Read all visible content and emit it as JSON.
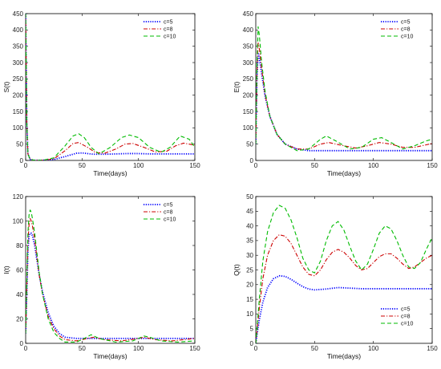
{
  "chart_data": [
    {
      "type": "line",
      "xlabel": "Time(days)",
      "ylabel": "S(t)",
      "xlim": [
        0,
        150
      ],
      "ylim": [
        0,
        450
      ],
      "xticks": [
        0,
        50,
        100,
        150
      ],
      "yticks": [
        0,
        50,
        100,
        150,
        200,
        250,
        300,
        350,
        400,
        450
      ],
      "legend": "top-right",
      "series": [
        {
          "name": "c=5",
          "color": "#0000ff",
          "dash": "dotted",
          "x": [
            0,
            1,
            2,
            4,
            8,
            15,
            25,
            35,
            45,
            50,
            55,
            60,
            70,
            80,
            90,
            100,
            110,
            120,
            130,
            140,
            150
          ],
          "y": [
            450,
            120,
            20,
            3,
            0.5,
            0.5,
            3,
            12,
            22,
            23,
            21,
            19,
            19,
            20,
            21,
            21,
            20,
            20,
            20,
            20,
            20
          ]
        },
        {
          "name": "c=8",
          "color": "#cc0000",
          "dash": "dashdot",
          "x": [
            0,
            1,
            2,
            4,
            8,
            15,
            25,
            35,
            42,
            47,
            55,
            62,
            70,
            80,
            88,
            95,
            105,
            115,
            125,
            133,
            140,
            150
          ],
          "y": [
            450,
            120,
            20,
            3,
            0.5,
            0.5,
            5,
            30,
            52,
            55,
            40,
            24,
            22,
            35,
            50,
            52,
            40,
            26,
            28,
            45,
            53,
            47
          ]
        },
        {
          "name": "c=10",
          "color": "#00bb00",
          "dash": "dashed",
          "x": [
            0,
            1,
            2,
            4,
            8,
            15,
            25,
            35,
            42,
            47,
            52,
            58,
            65,
            75,
            85,
            92,
            100,
            110,
            120,
            128,
            137,
            145,
            150
          ],
          "y": [
            450,
            120,
            20,
            3,
            0.5,
            0.5,
            8,
            45,
            75,
            82,
            70,
            40,
            20,
            40,
            70,
            78,
            70,
            40,
            25,
            40,
            75,
            65,
            40
          ]
        }
      ]
    },
    {
      "type": "line",
      "xlabel": "Time(days)",
      "ylabel": "E(t)",
      "xlim": [
        0,
        150
      ],
      "ylim": [
        0,
        450
      ],
      "xticks": [
        0,
        50,
        100,
        150
      ],
      "yticks": [
        0,
        50,
        100,
        150,
        200,
        250,
        300,
        350,
        400,
        450
      ],
      "legend": "top-right",
      "series": [
        {
          "name": "c=5",
          "color": "#0000ff",
          "dash": "dotted",
          "x": [
            0,
            1,
            2,
            3,
            5,
            8,
            12,
            18,
            25,
            35,
            45,
            60,
            80,
            100,
            120,
            150
          ],
          "y": [
            50,
            250,
            330,
            315,
            265,
            195,
            135,
            80,
            50,
            35,
            30,
            30,
            30,
            30,
            30,
            30
          ]
        },
        {
          "name": "c=8",
          "color": "#cc0000",
          "dash": "dashdot",
          "x": [
            0,
            1,
            2,
            3,
            5,
            8,
            12,
            18,
            25,
            35,
            45,
            55,
            62,
            72,
            85,
            95,
            105,
            115,
            125,
            135,
            145,
            150
          ],
          "y": [
            50,
            270,
            360,
            345,
            280,
            200,
            135,
            80,
            50,
            35,
            35,
            50,
            55,
            47,
            38,
            45,
            55,
            50,
            40,
            40,
            48,
            52
          ]
        },
        {
          "name": "c=10",
          "color": "#00bb00",
          "dash": "dashed",
          "x": [
            0,
            1,
            2,
            3,
            5,
            8,
            12,
            18,
            25,
            35,
            45,
            55,
            60,
            68,
            80,
            90,
            100,
            107,
            115,
            125,
            135,
            145,
            150
          ],
          "y": [
            50,
            290,
            410,
            385,
            300,
            210,
            135,
            80,
            50,
            30,
            35,
            65,
            75,
            60,
            35,
            40,
            65,
            70,
            55,
            35,
            45,
            60,
            65
          ]
        }
      ]
    },
    {
      "type": "line",
      "xlabel": "Time(days)",
      "ylabel": "I(t)",
      "xlim": [
        0,
        150
      ],
      "ylim": [
        0,
        120
      ],
      "xticks": [
        0,
        50,
        100,
        150
      ],
      "yticks": [
        0,
        20,
        40,
        60,
        80,
        100,
        120
      ],
      "legend": "top-right",
      "series": [
        {
          "name": "c=5",
          "color": "#0000ff",
          "dash": "dotted",
          "x": [
            0,
            1,
            2,
            3,
            4,
            5,
            6,
            8,
            10,
            12,
            15,
            20,
            25,
            30,
            35,
            45,
            60,
            80,
            100,
            120,
            150
          ],
          "y": [
            8,
            40,
            75,
            88,
            90,
            90,
            88,
            80,
            68,
            56,
            42,
            25,
            14,
            8,
            5,
            4,
            4,
            4,
            4,
            4,
            4
          ]
        },
        {
          "name": "c=8",
          "color": "#cc0000",
          "dash": "dashdot",
          "x": [
            0,
            1,
            2,
            3,
            4,
            5,
            6,
            8,
            10,
            12,
            15,
            20,
            25,
            30,
            35,
            45,
            55,
            60,
            70,
            85,
            100,
            105,
            115,
            130,
            150
          ],
          "y": [
            8,
            45,
            82,
            97,
            102,
            100,
            96,
            85,
            70,
            56,
            40,
            22,
            12,
            6,
            3,
            2,
            4,
            5,
            3,
            2,
            4,
            5,
            3,
            2,
            4
          ]
        },
        {
          "name": "c=10",
          "color": "#00bb00",
          "dash": "dashed",
          "x": [
            0,
            1,
            2,
            3,
            4,
            5,
            6,
            8,
            10,
            12,
            15,
            20,
            25,
            30,
            35,
            45,
            52,
            58,
            65,
            80,
            95,
            105,
            110,
            120,
            135,
            150
          ],
          "y": [
            8,
            50,
            90,
            105,
            109,
            107,
            102,
            90,
            74,
            58,
            40,
            20,
            9,
            4,
            1,
            1,
            4,
            7,
            4,
            1,
            2,
            6,
            5,
            2,
            1,
            2
          ]
        }
      ]
    },
    {
      "type": "line",
      "xlabel": "Time(days)",
      "ylabel": "Q(t)",
      "xlim": [
        0,
        150
      ],
      "ylim": [
        0,
        50
      ],
      "xticks": [
        0,
        50,
        100,
        150
      ],
      "yticks": [
        0,
        5,
        10,
        15,
        20,
        25,
        30,
        35,
        40,
        45,
        50
      ],
      "legend": "bottom-right",
      "series": [
        {
          "name": "c=5",
          "color": "#0000ff",
          "dash": "dotted",
          "x": [
            0,
            3,
            6,
            10,
            15,
            20,
            25,
            30,
            35,
            40,
            45,
            50,
            60,
            70,
            80,
            90,
            100,
            120,
            150
          ],
          "y": [
            0,
            8,
            14,
            19,
            22,
            23,
            22.8,
            21.8,
            20.5,
            19.3,
            18.5,
            18.2,
            18.5,
            19,
            18.8,
            18.6,
            18.6,
            18.6,
            18.6
          ]
        },
        {
          "name": "c=8",
          "color": "#cc0000",
          "dash": "dashdot",
          "x": [
            0,
            3,
            6,
            10,
            15,
            20,
            25,
            30,
            35,
            40,
            45,
            50,
            55,
            60,
            65,
            70,
            75,
            80,
            85,
            90,
            95,
            100,
            105,
            110,
            115,
            120,
            125,
            130,
            135,
            140,
            145,
            150
          ],
          "y": [
            0,
            12,
            22,
            30,
            35,
            37,
            36.5,
            34,
            30,
            26,
            23.5,
            23,
            25,
            28.5,
            31,
            32,
            31,
            29,
            26.5,
            25,
            25.5,
            27.5,
            29.5,
            30.5,
            30.5,
            29,
            27,
            25.5,
            26,
            27.5,
            29,
            30
          ]
        },
        {
          "name": "c=10",
          "color": "#00bb00",
          "dash": "dashed",
          "x": [
            0,
            3,
            6,
            10,
            15,
            20,
            25,
            30,
            35,
            40,
            45,
            50,
            55,
            60,
            65,
            70,
            75,
            80,
            85,
            90,
            95,
            100,
            105,
            110,
            115,
            120,
            125,
            130,
            135,
            140,
            145,
            150
          ],
          "y": [
            0,
            15,
            28,
            38,
            44.5,
            47,
            46,
            42,
            36,
            29,
            25,
            24,
            28,
            35,
            40,
            41.5,
            38.5,
            33,
            28,
            25,
            27,
            32,
            37.5,
            40,
            39,
            35,
            30,
            26,
            25.5,
            27.5,
            32,
            36
          ]
        }
      ]
    }
  ]
}
